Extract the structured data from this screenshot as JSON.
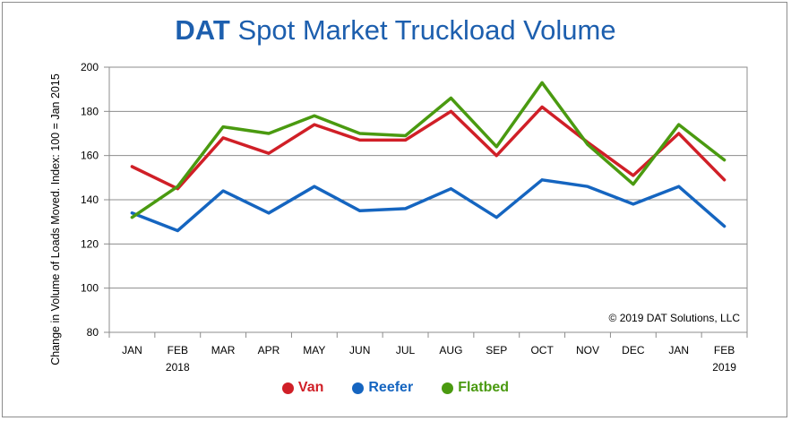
{
  "title_brand": "DAT",
  "title_rest": "Spot Market Truckload Volume",
  "credit": "© 2019 DAT Solutions, LLC",
  "chart_data": {
    "type": "line",
    "title": "DAT Spot Market Truckload Volume",
    "ylabel": "Change in Volume of Loads Moved. Index: 100 = Jan 2015",
    "xlabel": "",
    "ylim": [
      80,
      200
    ],
    "yticks": [
      80,
      100,
      120,
      140,
      160,
      180,
      200
    ],
    "grid": true,
    "legend": "bottom",
    "categories": [
      "JAN",
      "FEB",
      "MAR",
      "APR",
      "MAY",
      "JUN",
      "JUL",
      "AUG",
      "SEP",
      "OCT",
      "NOV",
      "DEC",
      "JAN",
      "FEB"
    ],
    "category_sublabels": [
      "",
      "2018",
      "",
      "",
      "",
      "",
      "",
      "",
      "",
      "",
      "",
      "",
      "",
      "2019"
    ],
    "series": [
      {
        "name": "Van",
        "color": "#d01f27",
        "values": [
          155,
          145,
          168,
          161,
          174,
          167,
          167,
          180,
          160,
          182,
          166,
          151,
          170,
          149
        ]
      },
      {
        "name": "Reefer",
        "color": "#1565c0",
        "values": [
          134,
          126,
          144,
          134,
          146,
          135,
          136,
          145,
          132,
          149,
          146,
          138,
          146,
          128
        ]
      },
      {
        "name": "Flatbed",
        "color": "#4a9a10",
        "values": [
          132,
          146,
          173,
          170,
          178,
          170,
          169,
          186,
          164,
          193,
          165,
          147,
          174,
          158
        ]
      }
    ]
  }
}
